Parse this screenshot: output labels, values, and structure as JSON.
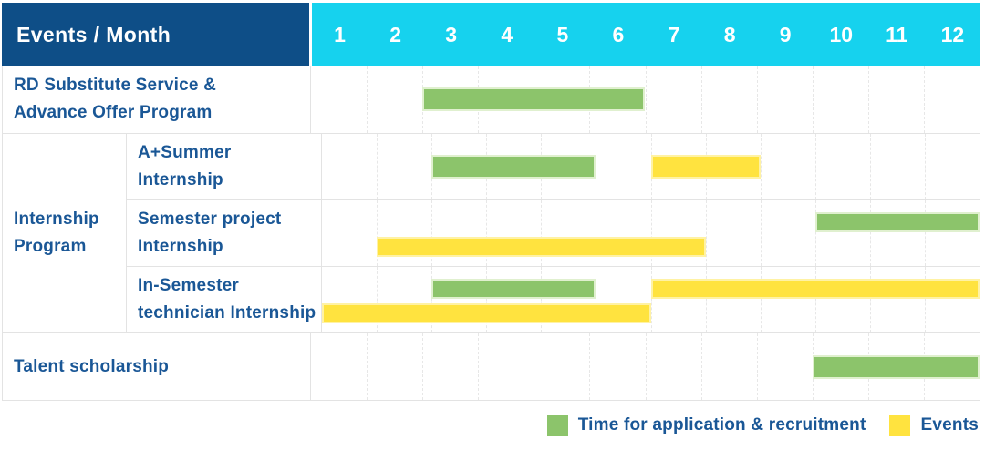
{
  "header": {
    "label": "Events / Month",
    "months": [
      "1",
      "2",
      "3",
      "4",
      "5",
      "6",
      "7",
      "8",
      "9",
      "10",
      "11",
      "12"
    ]
  },
  "rows_ui": {
    "row1_lines": [
      "RD Substitute Service &",
      "Advance Offer Program"
    ],
    "group_lines": [
      "Internship",
      "Program"
    ],
    "sub1_lines": [
      "A+Summer",
      "Internship"
    ],
    "sub2_lines": [
      "Semester project",
      "Internship"
    ],
    "sub3_lines": [
      "In-Semester",
      "technician Internship"
    ],
    "row5_lines": [
      "Talent scholarship"
    ]
  },
  "legend": {
    "items": [
      {
        "label": "Time for application & recruitment",
        "color": "#8CC46B"
      },
      {
        "label": "Events",
        "color": "#FFE33F"
      }
    ]
  },
  "colors": {
    "header_bg": "#0E4E87",
    "months_bg": "#16D2EE",
    "header_text": "#FFFFFF",
    "label_text": "#1A5796",
    "green_bar": "#8CC46B",
    "yellow_bar": "#FFE33F",
    "grid_line": "#E7E7E7",
    "cell_border": "#E3E3E3"
  },
  "chart_data": {
    "type": "table",
    "subtype": "gantt-timeline",
    "title": "Events / Month",
    "x_axis": {
      "label": "Month",
      "ticks": [
        1,
        2,
        3,
        4,
        5,
        6,
        7,
        8,
        9,
        10,
        11,
        12
      ],
      "range_months": [
        1,
        12
      ]
    },
    "series_legend": [
      "Time for application & recruitment",
      "Events"
    ],
    "rows": [
      {
        "group": "",
        "label": "RD Substitute Service & Advance Offer Program",
        "bars": [
          {
            "series": "Time for application & recruitment",
            "start_month": 3,
            "end_month": 6,
            "track": 0
          }
        ]
      },
      {
        "group": "Internship Program",
        "label": "A+Summer Internship",
        "bars": [
          {
            "series": "Time for application & recruitment",
            "start_month": 3,
            "end_month": 5,
            "track": 0
          },
          {
            "series": "Events",
            "start_month": 7,
            "end_month": 8,
            "track": 0
          }
        ]
      },
      {
        "group": "Internship Program",
        "label": "Semester project Internship",
        "bars": [
          {
            "series": "Time for application & recruitment",
            "start_month": 10,
            "end_month": 12,
            "track": 0
          },
          {
            "series": "Events",
            "start_month": 2,
            "end_month": 7,
            "track": 1
          }
        ]
      },
      {
        "group": "Internship Program",
        "label": "In-Semester technician Internship",
        "bars": [
          {
            "series": "Time for application & recruitment",
            "start_month": 3,
            "end_month": 5,
            "track": 0
          },
          {
            "series": "Events",
            "start_month": 7,
            "end_month": 12,
            "track": 0
          },
          {
            "series": "Events",
            "start_month": 1,
            "end_month": 6,
            "track": 1
          }
        ]
      },
      {
        "group": "",
        "label": "Talent scholarship",
        "bars": [
          {
            "series": "Time for application & recruitment",
            "start_month": 10,
            "end_month": 12,
            "track": 0
          }
        ]
      }
    ]
  }
}
